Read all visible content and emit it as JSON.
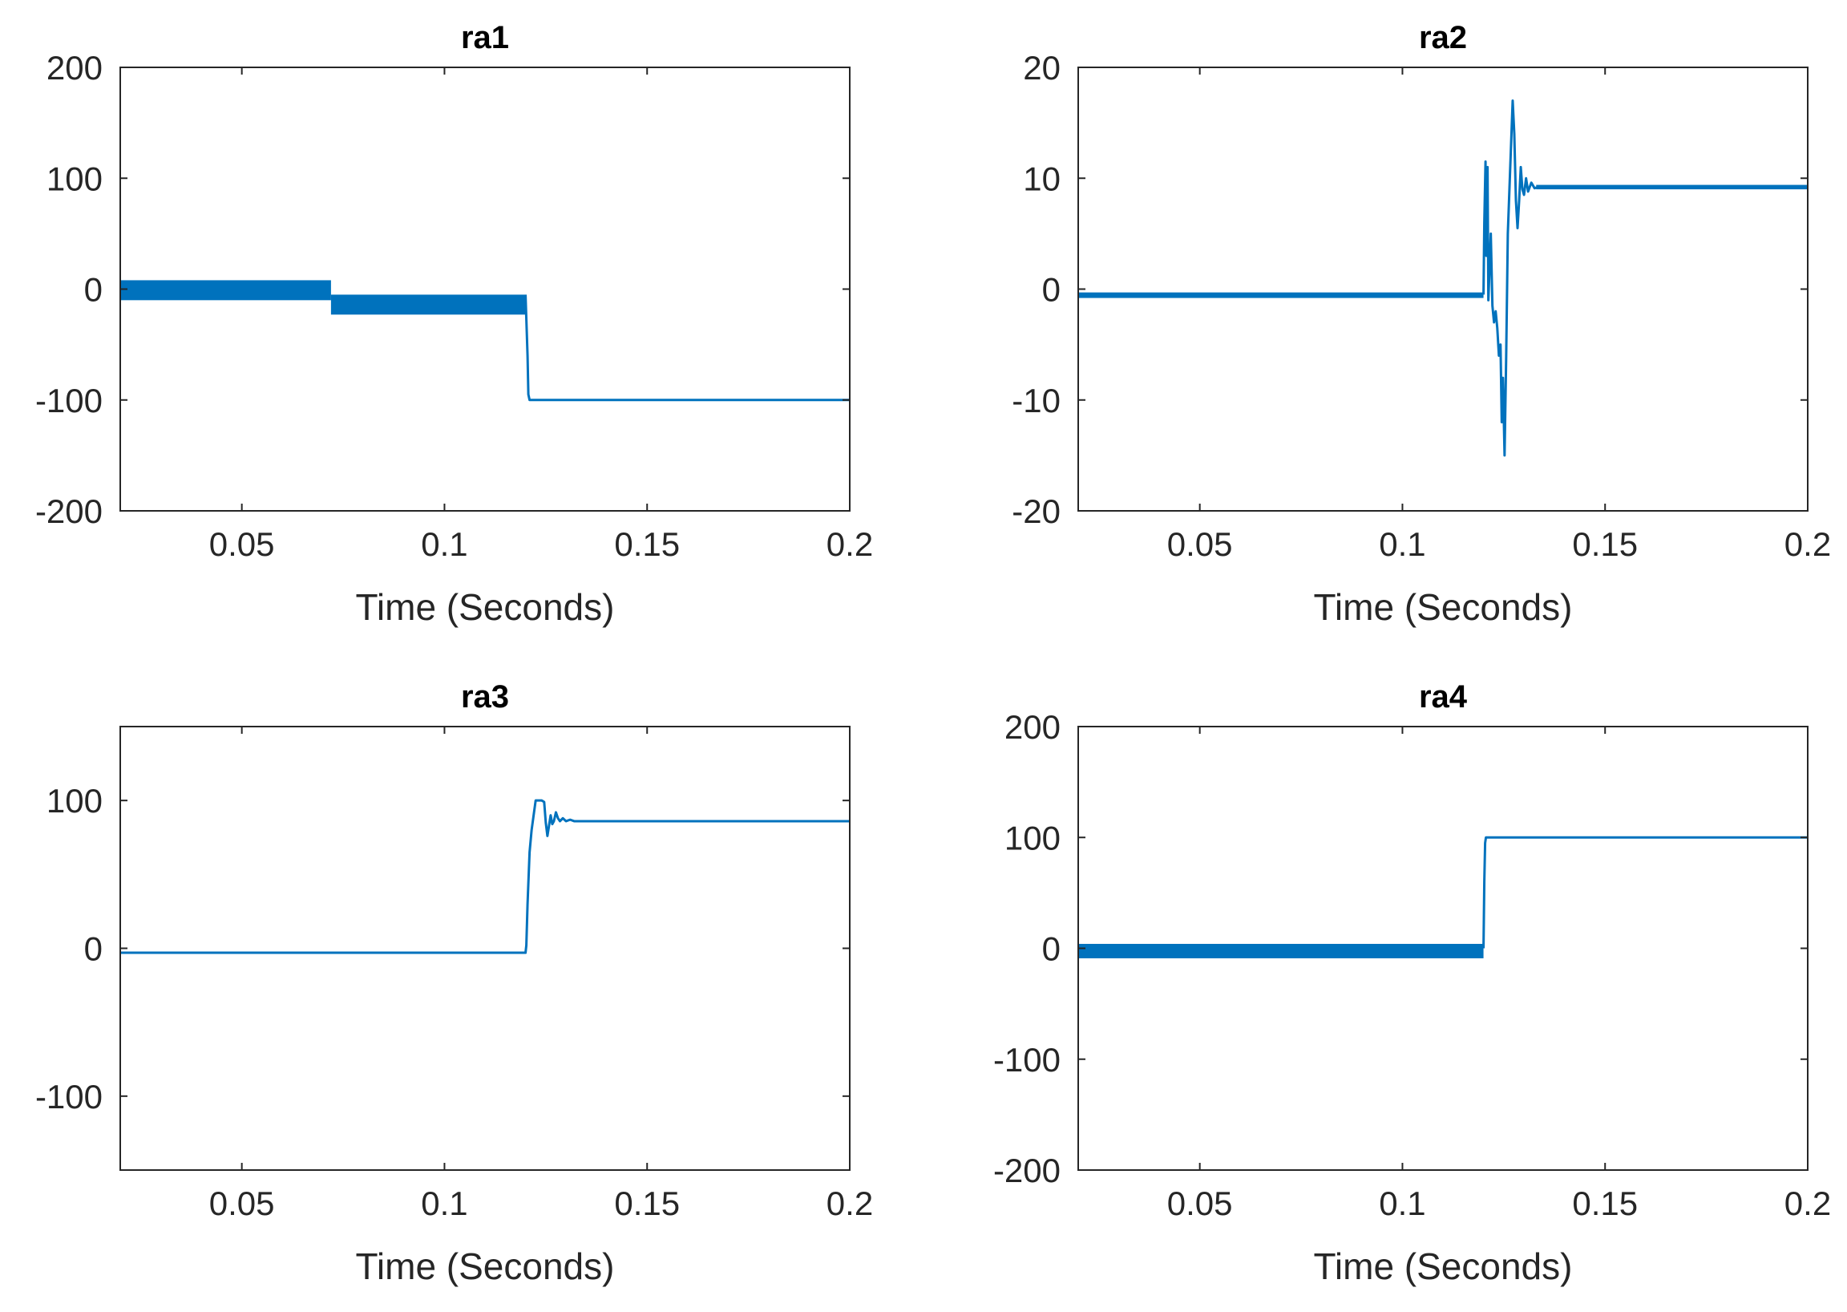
{
  "chart_data": [
    {
      "type": "line",
      "title": "ra1",
      "xlabel": "Time (Seconds)",
      "ylabel": "",
      "xlim": [
        0.02,
        0.2
      ],
      "ylim": [
        -200,
        200
      ],
      "xticks": [
        0.05,
        0.1,
        0.15,
        0.2
      ],
      "xtick_labels": [
        "0.05",
        "0.1",
        "0.15",
        "0.2"
      ],
      "yticks": [
        200,
        100,
        0,
        -100,
        -200
      ],
      "ytick_labels": [
        "200",
        "100",
        "0",
        "-100",
        "-200"
      ],
      "bands": [
        {
          "x": [
            0.02,
            0.072
          ],
          "y": [
            -10,
            8
          ]
        },
        {
          "x": [
            0.072,
            0.12
          ],
          "y": [
            -23,
            -5
          ]
        }
      ],
      "series": [
        {
          "name": "ra1",
          "x": [
            0.12,
            0.1205,
            0.1207,
            0.121,
            0.2
          ],
          "y": [
            -5,
            -60,
            -95,
            -100,
            -100
          ]
        }
      ]
    },
    {
      "type": "line",
      "title": "ra2",
      "xlabel": "Time (Seconds)",
      "ylabel": "",
      "xlim": [
        0.02,
        0.2
      ],
      "ylim": [
        -20,
        20
      ],
      "xticks": [
        0.05,
        0.1,
        0.15,
        0.2
      ],
      "xtick_labels": [
        "0.05",
        "0.1",
        "0.15",
        "0.2"
      ],
      "yticks": [
        20,
        10,
        0,
        -10,
        -20
      ],
      "ytick_labels": [
        "20",
        "10",
        "0",
        "-10",
        "-20"
      ],
      "bands": [
        {
          "x": [
            0.02,
            0.12
          ],
          "y": [
            -0.8,
            -0.3
          ]
        },
        {
          "x": [
            0.133,
            0.2
          ],
          "y": [
            9,
            9.4
          ]
        }
      ],
      "series": [
        {
          "name": "ra2",
          "x": [
            0.12,
            0.1202,
            0.1205,
            0.1207,
            0.121,
            0.1212,
            0.1215,
            0.1218,
            0.1222,
            0.1226,
            0.123,
            0.1234,
            0.1238,
            0.1242,
            0.1245,
            0.1248,
            0.1252,
            0.1256,
            0.126,
            0.1264,
            0.1268,
            0.1272,
            0.1276,
            0.128,
            0.1284,
            0.1288,
            0.1292,
            0.1296,
            0.13,
            0.1305,
            0.131,
            0.1318,
            0.1326,
            0.1335,
            0.2
          ],
          "y": [
            -0.5,
            6,
            11.5,
            3,
            11,
            -1,
            2,
            5,
            -1.5,
            -3,
            -2,
            -3.5,
            -6,
            -5,
            -12,
            -8,
            -15,
            -6,
            5,
            9,
            13,
            17,
            14,
            8,
            5.5,
            8,
            11,
            9,
            8.5,
            10,
            8.8,
            9.6,
            9.1,
            9.2,
            9.2
          ]
        }
      ]
    },
    {
      "type": "line",
      "title": "ra3",
      "xlabel": "Time (Seconds)",
      "ylabel": "",
      "xlim": [
        0.02,
        0.2
      ],
      "ylim": [
        -150,
        150
      ],
      "xticks": [
        0.05,
        0.1,
        0.15,
        0.2
      ],
      "xtick_labels": [
        "0.05",
        "0.1",
        "0.15",
        "0.2"
      ],
      "yticks": [
        100,
        0,
        -100
      ],
      "ytick_labels": [
        "100",
        "0",
        "-100"
      ],
      "bands": [],
      "series": [
        {
          "name": "ra3",
          "x": [
            0.02,
            0.12,
            0.1202,
            0.1205,
            0.121,
            0.1215,
            0.122,
            0.1225,
            0.1232,
            0.124,
            0.1246,
            0.125,
            0.1254,
            0.1258,
            0.1262,
            0.1266,
            0.127,
            0.1275,
            0.128,
            0.1285,
            0.1292,
            0.13,
            0.131,
            0.132,
            0.2
          ],
          "y": [
            -3,
            -3,
            2,
            30,
            65,
            80,
            90,
            100,
            100,
            100,
            99,
            85,
            76,
            83,
            90,
            84,
            86,
            92,
            88,
            86,
            88,
            86,
            87,
            86,
            86
          ]
        }
      ]
    },
    {
      "type": "line",
      "title": "ra4",
      "xlabel": "Time (Seconds)",
      "ylabel": "",
      "xlim": [
        0.02,
        0.2
      ],
      "ylim": [
        -200,
        200
      ],
      "xticks": [
        0.05,
        0.1,
        0.15,
        0.2
      ],
      "xtick_labels": [
        "0.05",
        "0.1",
        "0.15",
        "0.2"
      ],
      "yticks": [
        200,
        100,
        0,
        -100,
        -200
      ],
      "ytick_labels": [
        "200",
        "100",
        "0",
        "-100",
        "-200"
      ],
      "bands": [
        {
          "x": [
            0.02,
            0.12
          ],
          "y": [
            -9,
            4
          ]
        }
      ],
      "series": [
        {
          "name": "ra4",
          "x": [
            0.12,
            0.1202,
            0.1204,
            0.1206,
            0.2
          ],
          "y": [
            0,
            60,
            95,
            100,
            100
          ]
        }
      ]
    }
  ],
  "colors": {
    "series": "#0072BD",
    "axes": "#262626",
    "title": "#000000"
  }
}
